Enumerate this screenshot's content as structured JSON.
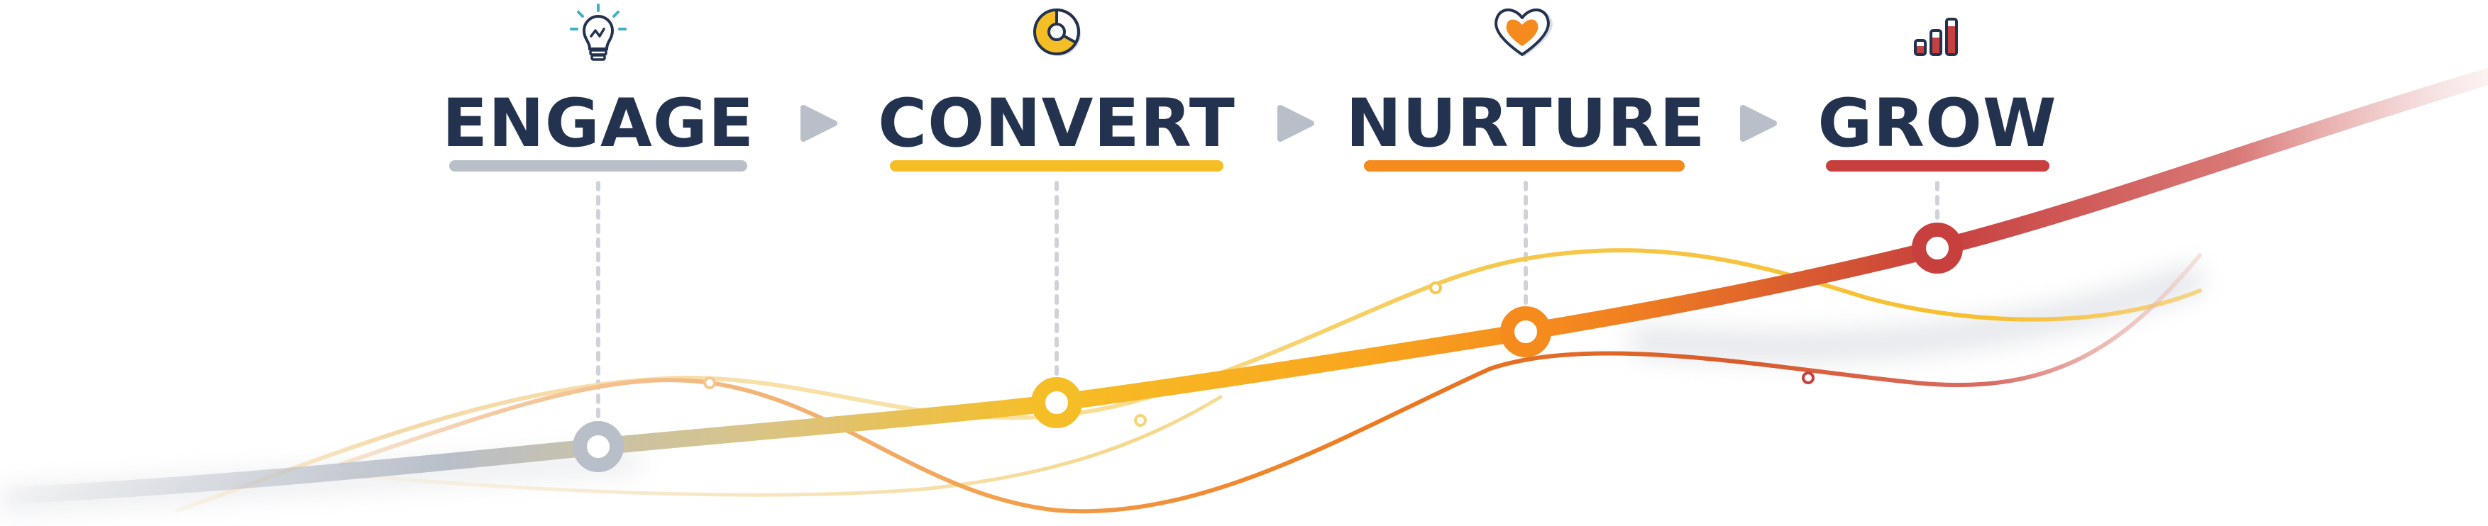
{
  "stages": [
    {
      "label": "ENGAGE",
      "icon": "lightbulb-icon",
      "color": "#b9bfc9"
    },
    {
      "label": "CONVERT",
      "icon": "pie-chart-icon",
      "color": "#f6be26"
    },
    {
      "label": "NURTURE",
      "icon": "heart-icon",
      "color": "#f58a1d"
    },
    {
      "label": "GROW",
      "icon": "bar-chart-icon",
      "color": "#c7403e"
    }
  ],
  "colors": {
    "text": "#22324f",
    "arrow": "#b9bfc9",
    "dotted_line": "#cfd3d9",
    "gray": "#b9bfc9",
    "yellow": "#f6be26",
    "orange": "#f58a1d",
    "red": "#c7403e"
  }
}
